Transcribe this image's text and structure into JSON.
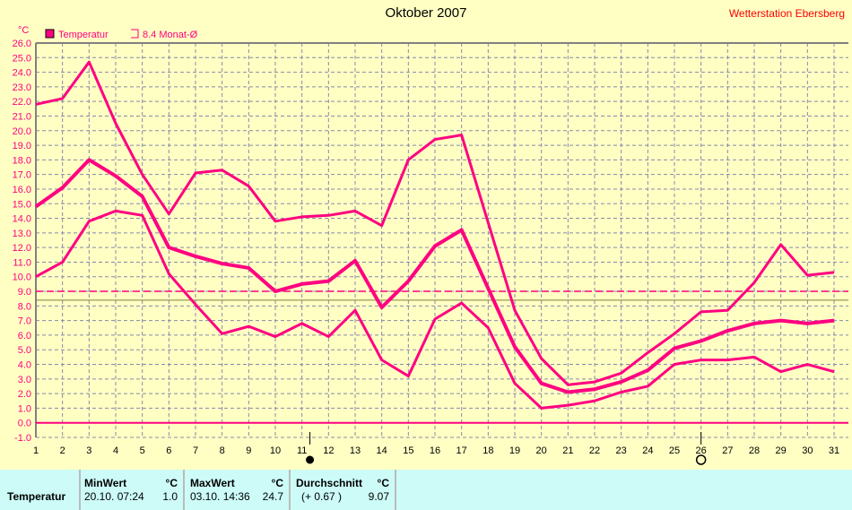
{
  "title": "Oktober 2007",
  "station": "Wetterstation Ebersberg",
  "unit_label": "°C",
  "legend": {
    "series": "Temperatur",
    "average": "8.4 Monat-Ø"
  },
  "colors": {
    "series": "#ff0080",
    "grid": "#8888aa",
    "avgline": "#808040",
    "background": "#ffffc4"
  },
  "chart_data": {
    "type": "line",
    "title": "Oktober 2007",
    "ylabel": "°C",
    "ylim": [
      -1,
      26
    ],
    "yticks": [
      "26.0",
      "25.0",
      "24.0",
      "23.0",
      "22.0",
      "21.0",
      "20.0",
      "19.0",
      "18.0",
      "17.0",
      "16.0",
      "15.0",
      "14.0",
      "13.0",
      "12.0",
      "11.0",
      "10.0",
      "9.0",
      "8.0",
      "7.0",
      "6.0",
      "5.0",
      "4.0",
      "3.0",
      "2.0",
      "1.0",
      "0.0",
      "-1.0"
    ],
    "x": [
      1,
      2,
      3,
      4,
      5,
      6,
      7,
      8,
      9,
      10,
      11,
      12,
      13,
      14,
      15,
      16,
      17,
      18,
      19,
      20,
      21,
      22,
      23,
      24,
      25,
      26,
      27,
      28,
      29,
      30,
      31
    ],
    "series": [
      {
        "name": "Max",
        "values": [
          21.8,
          22.2,
          24.7,
          20.5,
          17.0,
          14.3,
          17.1,
          17.3,
          16.2,
          13.8,
          14.1,
          14.2,
          14.5,
          13.5,
          18.0,
          19.4,
          19.7,
          13.7,
          7.7,
          4.4,
          2.6,
          2.8,
          3.4,
          4.8,
          6.1,
          7.6,
          7.7,
          9.6,
          12.2,
          10.1,
          10.3
        ]
      },
      {
        "name": "Temperatur",
        "values": [
          14.8,
          16.1,
          18.0,
          16.9,
          15.5,
          12.0,
          11.4,
          10.9,
          10.6,
          9.0,
          9.5,
          9.7,
          11.1,
          7.9,
          9.7,
          12.1,
          13.2,
          9.2,
          5.2,
          2.7,
          2.1,
          2.3,
          2.8,
          3.6,
          5.1,
          5.6,
          6.3,
          6.8,
          7.0,
          6.8,
          7.0
        ]
      },
      {
        "name": "Min",
        "values": [
          10.0,
          11.0,
          13.8,
          14.5,
          14.2,
          10.2,
          8.1,
          6.1,
          6.6,
          5.9,
          6.8,
          5.9,
          7.7,
          4.3,
          3.2,
          7.1,
          8.2,
          6.5,
          2.7,
          1.0,
          1.2,
          1.5,
          2.1,
          2.5,
          4.0,
          4.3,
          4.3,
          4.5,
          3.5,
          4.0,
          3.5
        ]
      }
    ],
    "reference_lines": [
      {
        "name": "dashed",
        "value": 9.0
      },
      {
        "name": "Monat-Ø",
        "value": 8.4
      },
      {
        "name": "zero",
        "value": 0.0
      }
    ],
    "moon": {
      "full": 11.3,
      "new": 26
    }
  },
  "table": {
    "row_label": "Temperatur",
    "min": {
      "header": "MinWert",
      "unit": "°C",
      "time": "20.10.  07:24",
      "value": "1.0"
    },
    "max": {
      "header": "MaxWert",
      "unit": "°C",
      "time": "03.10.  14:36",
      "value": "24.7"
    },
    "avg": {
      "header": "Durchschnitt",
      "unit": "°C",
      "diff": "(+ 0.67 )",
      "value": "9.07"
    }
  }
}
